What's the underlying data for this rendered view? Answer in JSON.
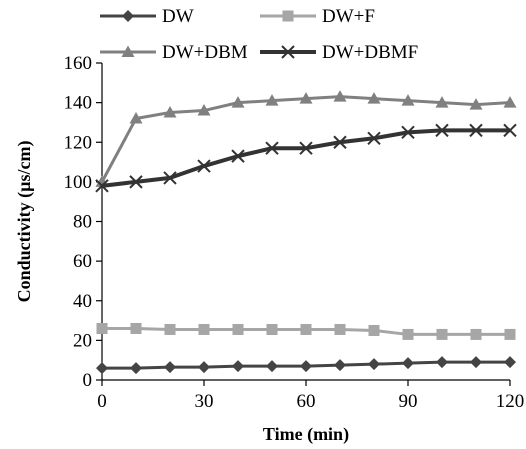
{
  "chart_data": {
    "type": "line",
    "xlabel": "Time (min)",
    "ylabel": "Conductivity (µs/cm)",
    "xlim": [
      0,
      120
    ],
    "ylim": [
      0,
      160
    ],
    "xticks": [
      0,
      30,
      60,
      90,
      120
    ],
    "yticks": [
      0,
      20,
      40,
      60,
      80,
      100,
      120,
      140,
      160
    ],
    "grid": false,
    "legend_position": "top",
    "x": [
      0,
      10,
      20,
      30,
      40,
      50,
      60,
      70,
      80,
      90,
      100,
      110,
      120
    ],
    "series": [
      {
        "name": "DW",
        "color": "#444444",
        "marker": "diamond",
        "line_width": 3,
        "values": [
          6,
          6,
          6.5,
          6.5,
          7,
          7,
          7,
          7.5,
          8,
          8.5,
          9,
          9,
          9
        ]
      },
      {
        "name": "DW+F",
        "color": "#a6a6a6",
        "marker": "square",
        "line_width": 3,
        "values": [
          26,
          26,
          25.5,
          25.5,
          25.5,
          25.5,
          25.5,
          25.5,
          25,
          23,
          23,
          23,
          23
        ]
      },
      {
        "name": "DW+DBM",
        "color": "#808080",
        "marker": "triangle",
        "line_width": 3,
        "values": [
          100,
          132,
          135,
          136,
          140,
          141,
          142,
          143,
          142,
          141,
          140,
          139,
          140
        ]
      },
      {
        "name": "DW+DBMF",
        "color": "#333333",
        "marker": "x",
        "line_width": 4,
        "values": [
          98,
          100,
          102,
          108,
          113,
          117,
          117,
          120,
          122,
          125,
          126,
          126,
          126
        ]
      }
    ]
  }
}
